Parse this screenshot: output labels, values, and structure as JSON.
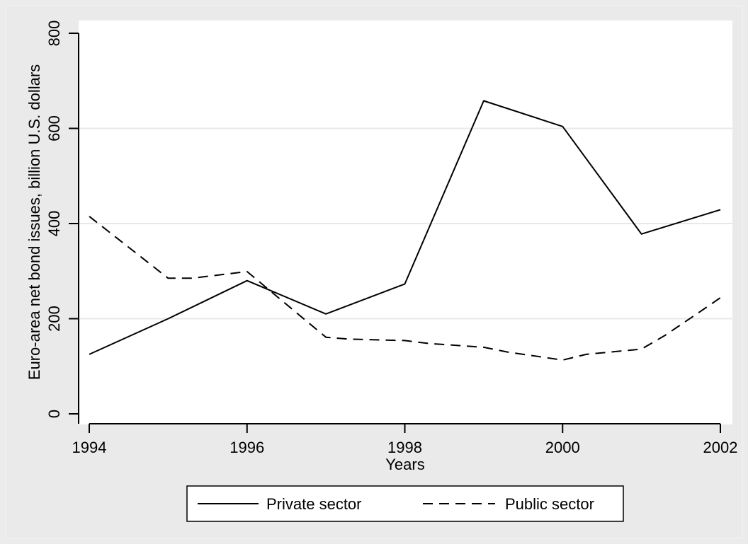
{
  "chart_data": {
    "type": "line",
    "title": "",
    "xlabel": "Years",
    "ylabel": "Euro-area net bond issues, billion U.S. dollars",
    "xlim": [
      1994,
      2002
    ],
    "ylim": [
      0,
      800
    ],
    "x_ticks": [
      1994,
      1996,
      1998,
      2000,
      2002
    ],
    "y_ticks": [
      0,
      200,
      400,
      600,
      800
    ],
    "grid": "horizontal",
    "legend_position": "bottom",
    "x": [
      1994,
      1995,
      1996,
      1997,
      1998,
      1999,
      2000,
      2001,
      2002
    ],
    "series": [
      {
        "name": "Private sector",
        "style": "solid",
        "values": [
          125,
          200,
          280,
          210,
          273,
          658,
          604,
          378,
          429
        ]
      },
      {
        "name": "Public sector",
        "style": "dashed",
        "x": [
          1994,
          1995,
          1995.3,
          1996,
          1997,
          1997.3,
          1998,
          1998.3,
          1999,
          1999.3,
          2000,
          2000.3,
          2001,
          2001.3,
          2001.7,
          2002
        ],
        "values": [
          415,
          285,
          285,
          299,
          161,
          157,
          154,
          148,
          140,
          130,
          113,
          125,
          136,
          165,
          210,
          244
        ]
      }
    ]
  }
}
